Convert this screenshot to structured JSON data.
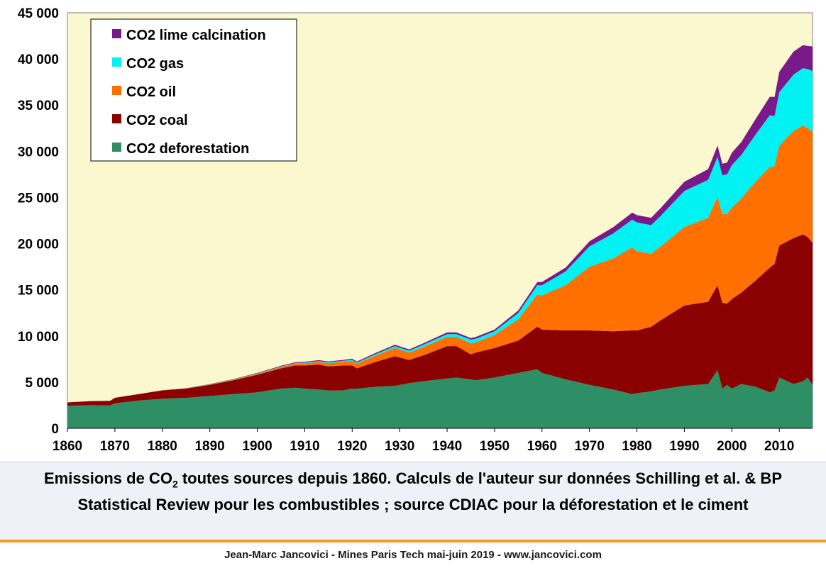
{
  "caption": {
    "prefix": "Emissions de CO",
    "subscript": "2",
    "suffix": " toutes sources depuis 1860. Calculs de l'auteur sur données Schilling et al. & BP Statistical Review pour les combustibles ; source CDIAC pour la déforestation et le ciment"
  },
  "footer": "Jean-Marc Jancovici - Mines Paris Tech mai-juin 2019 - www.jancovici.com",
  "colors": {
    "plot_background": "#fbf7cf",
    "deforestation": "#2e8f66",
    "coal": "#8b0000",
    "oil": "#ff7000",
    "gas": "#00f2f2",
    "lime": "#7a1a8a",
    "caption_rule": "#f29a1f"
  },
  "chart_data": {
    "type": "area",
    "stacked": true,
    "xlim": [
      1860,
      2017
    ],
    "ylim": [
      0,
      45000
    ],
    "x_ticks": [
      1860,
      1870,
      1880,
      1890,
      1900,
      1910,
      1920,
      1930,
      1940,
      1950,
      1960,
      1970,
      1980,
      1990,
      2000,
      2010
    ],
    "y_ticks": [
      0,
      5000,
      10000,
      15000,
      20000,
      25000,
      30000,
      35000,
      40000,
      45000
    ],
    "y_tick_labels": [
      "0",
      "5 000",
      "10 000",
      "15 000",
      "20 000",
      "25 000",
      "30 000",
      "35 000",
      "40 000",
      "45 000"
    ],
    "legend_position": "top-left",
    "legend_order": [
      "lime",
      "gas",
      "oil",
      "coal",
      "deforestation"
    ],
    "grid": false,
    "x": [
      1860,
      1865,
      1869,
      1870,
      1875,
      1880,
      1885,
      1890,
      1895,
      1900,
      1905,
      1908,
      1910,
      1913,
      1915,
      1918,
      1920,
      1921,
      1925,
      1929,
      1932,
      1935,
      1940,
      1942,
      1945,
      1946,
      1950,
      1955,
      1959,
      1960,
      1965,
      1970,
      1975,
      1979,
      1980,
      1983,
      1985,
      1990,
      1995,
      1997,
      1998,
      1999,
      2000,
      2002,
      2005,
      2008,
      2009,
      2010,
      2013,
      2015,
      2016,
      2017
    ],
    "series": [
      {
        "key": "deforestation",
        "name": "CO2 deforestation",
        "values": [
          2450,
          2500,
          2480,
          2700,
          3000,
          3200,
          3300,
          3500,
          3700,
          3900,
          4300,
          4400,
          4300,
          4200,
          4100,
          4100,
          4300,
          4300,
          4500,
          4600,
          4900,
          5100,
          5400,
          5500,
          5300,
          5200,
          5500,
          6000,
          6400,
          6000,
          5300,
          4700,
          4200,
          3700,
          3800,
          4000,
          4200,
          4600,
          4800,
          6300,
          4300,
          4700,
          4300,
          4800,
          4500,
          3900,
          4100,
          5500,
          4800,
          5100,
          5500,
          4700
        ]
      },
      {
        "key": "coal",
        "name": "CO2 coal",
        "values": [
          350,
          450,
          500,
          600,
          700,
          900,
          1000,
          1200,
          1500,
          1900,
          2200,
          2400,
          2500,
          2700,
          2600,
          2700,
          2500,
          2200,
          2700,
          3200,
          2500,
          2800,
          3500,
          3400,
          2700,
          3000,
          3200,
          3500,
          4600,
          4700,
          5300,
          5900,
          6300,
          6900,
          6800,
          7000,
          7500,
          8700,
          8900,
          9200,
          9300,
          8800,
          9700,
          9900,
          11500,
          13500,
          13700,
          14300,
          15800,
          15900,
          15200,
          15400
        ]
      },
      {
        "key": "oil",
        "name": "CO2 oil",
        "values": [
          0,
          0,
          0,
          0,
          0,
          10,
          20,
          40,
          70,
          100,
          150,
          200,
          250,
          300,
          350,
          400,
          500,
          500,
          700,
          900,
          800,
          900,
          1000,
          1000,
          1200,
          1100,
          1400,
          2300,
          3500,
          3700,
          4900,
          6900,
          7900,
          9000,
          8600,
          7900,
          8000,
          8500,
          9100,
          9600,
          9600,
          9700,
          9900,
          10200,
          10700,
          10900,
          10600,
          10800,
          11600,
          11800,
          11800,
          12000
        ]
      },
      {
        "key": "gas",
        "name": "CO2 gas",
        "values": [
          0,
          0,
          0,
          0,
          0,
          0,
          10,
          20,
          30,
          40,
          50,
          60,
          70,
          80,
          90,
          100,
          120,
          120,
          150,
          200,
          200,
          250,
          300,
          300,
          400,
          400,
          400,
          700,
          1000,
          1100,
          1500,
          2200,
          2700,
          3000,
          3100,
          3100,
          3300,
          3900,
          4100,
          4300,
          4200,
          4300,
          4600,
          4700,
          5100,
          5600,
          5400,
          5800,
          6100,
          6200,
          6400,
          6600
        ]
      },
      {
        "key": "lime",
        "name": "CO2 lime calcination",
        "values": [
          0,
          0,
          0,
          0,
          0,
          10,
          20,
          30,
          40,
          60,
          70,
          80,
          90,
          100,
          100,
          100,
          110,
          110,
          130,
          150,
          150,
          160,
          180,
          180,
          170,
          180,
          200,
          260,
          330,
          350,
          420,
          560,
          680,
          760,
          780,
          800,
          850,
          1000,
          1170,
          1220,
          1250,
          1280,
          1340,
          1400,
          1680,
          2000,
          2080,
          2200,
          2500,
          2500,
          2500,
          2650
        ]
      }
    ]
  }
}
